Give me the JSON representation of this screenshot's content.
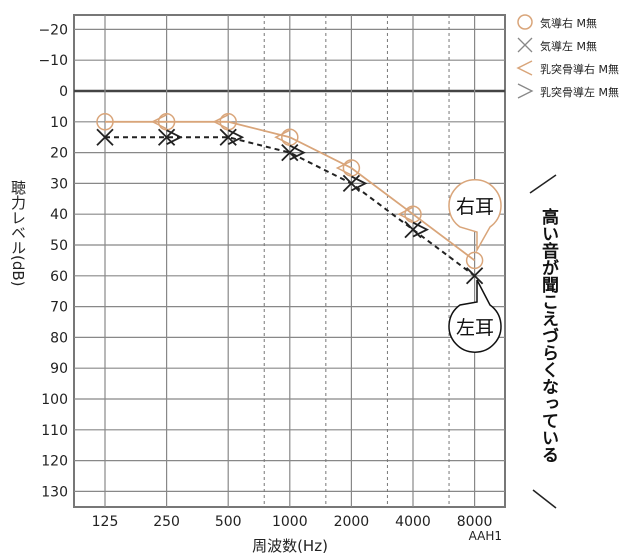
{
  "chart_data": {
    "type": "line",
    "xlabel": "周波数(Hz)",
    "ylabel": "聴力レベル(dB)",
    "x_categories": [
      "125",
      "250",
      "500",
      "1000",
      "2000",
      "4000",
      "8000"
    ],
    "y_ticks": [
      -20,
      -10,
      0,
      10,
      20,
      30,
      40,
      50,
      60,
      70,
      80,
      90,
      100,
      110,
      120,
      130
    ],
    "y_tick_labels": [
      "−20",
      "−10",
      "0",
      "10",
      "20",
      "30",
      "40",
      "50",
      "60",
      "70",
      "80",
      "90",
      "100",
      "110",
      "120",
      "130"
    ],
    "ylim": [
      -25,
      135
    ],
    "y_inverted": true,
    "grid": true,
    "code_label": "AAH1",
    "series": [
      {
        "name": "気導右 M無",
        "marker": "circle",
        "color": "#d9a57a",
        "line": "solid",
        "x": [
          "125",
          "250",
          "500",
          "1000",
          "2000",
          "4000",
          "8000"
        ],
        "values": [
          10,
          10,
          10,
          15,
          25,
          40,
          55
        ]
      },
      {
        "name": "気導左 M無",
        "marker": "cross",
        "color": "#222222",
        "line": "dashed",
        "x": [
          "125",
          "250",
          "500",
          "1000",
          "2000",
          "4000",
          "8000"
        ],
        "values": [
          15,
          15,
          15,
          20,
          30,
          45,
          60
        ]
      },
      {
        "name": "乳突骨導右 M無",
        "marker": "lt",
        "color": "#d9a57a",
        "x": [
          "250",
          "500",
          "1000",
          "2000",
          "4000"
        ],
        "values": [
          10,
          10,
          15,
          25,
          40
        ]
      },
      {
        "name": "乳突骨導左 M無",
        "marker": "gt",
        "color": "#222222",
        "x": [
          "250",
          "500",
          "1000",
          "2000",
          "4000"
        ],
        "values": [
          15,
          15,
          20,
          30,
          45
        ]
      }
    ],
    "legend_position": "top-right",
    "annotations": {
      "right_ear": "右耳",
      "left_ear": "左耳",
      "side_note": "高い音が聞こえづらくなっている"
    }
  }
}
